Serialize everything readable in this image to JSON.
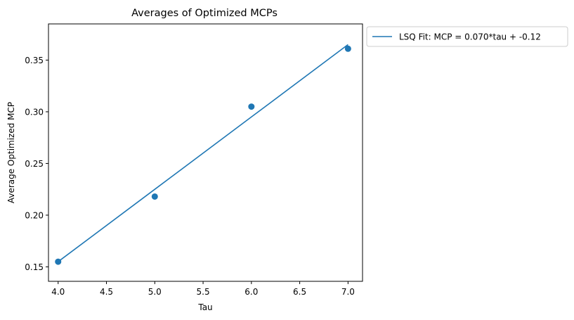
{
  "chart_data": {
    "type": "scatter",
    "title": "Averages of Optimized MCPs",
    "xlabel": "Tau",
    "ylabel": "Average Optimized MCP",
    "xlim": [
      3.9,
      7.15
    ],
    "ylim": [
      0.136,
      0.385
    ],
    "xticks": [
      4.0,
      4.5,
      5.0,
      5.5,
      6.0,
      6.5,
      7.0
    ],
    "xtick_labels": [
      "4.0",
      "4.5",
      "5.0",
      "5.5",
      "6.0",
      "6.5",
      "7.0"
    ],
    "yticks": [
      0.15,
      0.2,
      0.25,
      0.3,
      0.35
    ],
    "ytick_labels": [
      "0.15",
      "0.20",
      "0.25",
      "0.30",
      "0.35"
    ],
    "grid": false,
    "legend_position": "outside-top-right",
    "color": "#1f77b4",
    "points": {
      "x": [
        4,
        5,
        6,
        7
      ],
      "y": [
        0.155,
        0.218,
        0.305,
        0.361
      ]
    },
    "fit_line": {
      "name": "LSQ Fit: MCP = 0.070*tau + -0.12",
      "x": [
        4,
        5,
        6,
        7,
        6,
        5,
        4
      ],
      "y": [
        0.155,
        0.225,
        0.295,
        0.365,
        0.295,
        0.225,
        0.155
      ]
    }
  }
}
